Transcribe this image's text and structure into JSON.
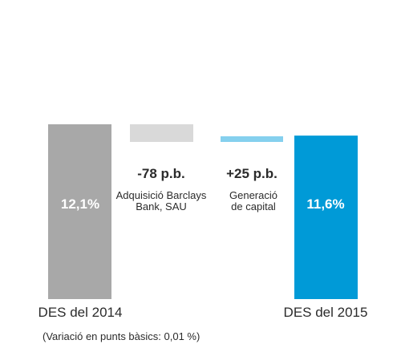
{
  "chart_data": {
    "type": "bar",
    "categories": [
      "DES del 2014",
      "Adquisició Barclays Bank, SAU",
      "Generació de capital",
      "DES del 2015"
    ],
    "values": [
      12.1,
      -0.78,
      0.25,
      11.6
    ],
    "value_labels": [
      "12,1%",
      "-78 p.b.",
      "+25 p.b.",
      "11,6%"
    ],
    "category_labels": {
      "start": "DES del 2014",
      "end": "DES del 2015",
      "mid1_line1": "Adquisició Barclays",
      "mid1_line2": "Bank, SAU",
      "mid2_line1": "Generació",
      "mid2_line2": "de capital"
    },
    "footnote": "(Variació en punts bàsics: 0,01 %)",
    "colors": {
      "start_bar": "#a8a8a8",
      "negative_bar": "#d9d9d9",
      "positive_bar": "#85d0ee",
      "end_bar": "#009ad7"
    }
  }
}
